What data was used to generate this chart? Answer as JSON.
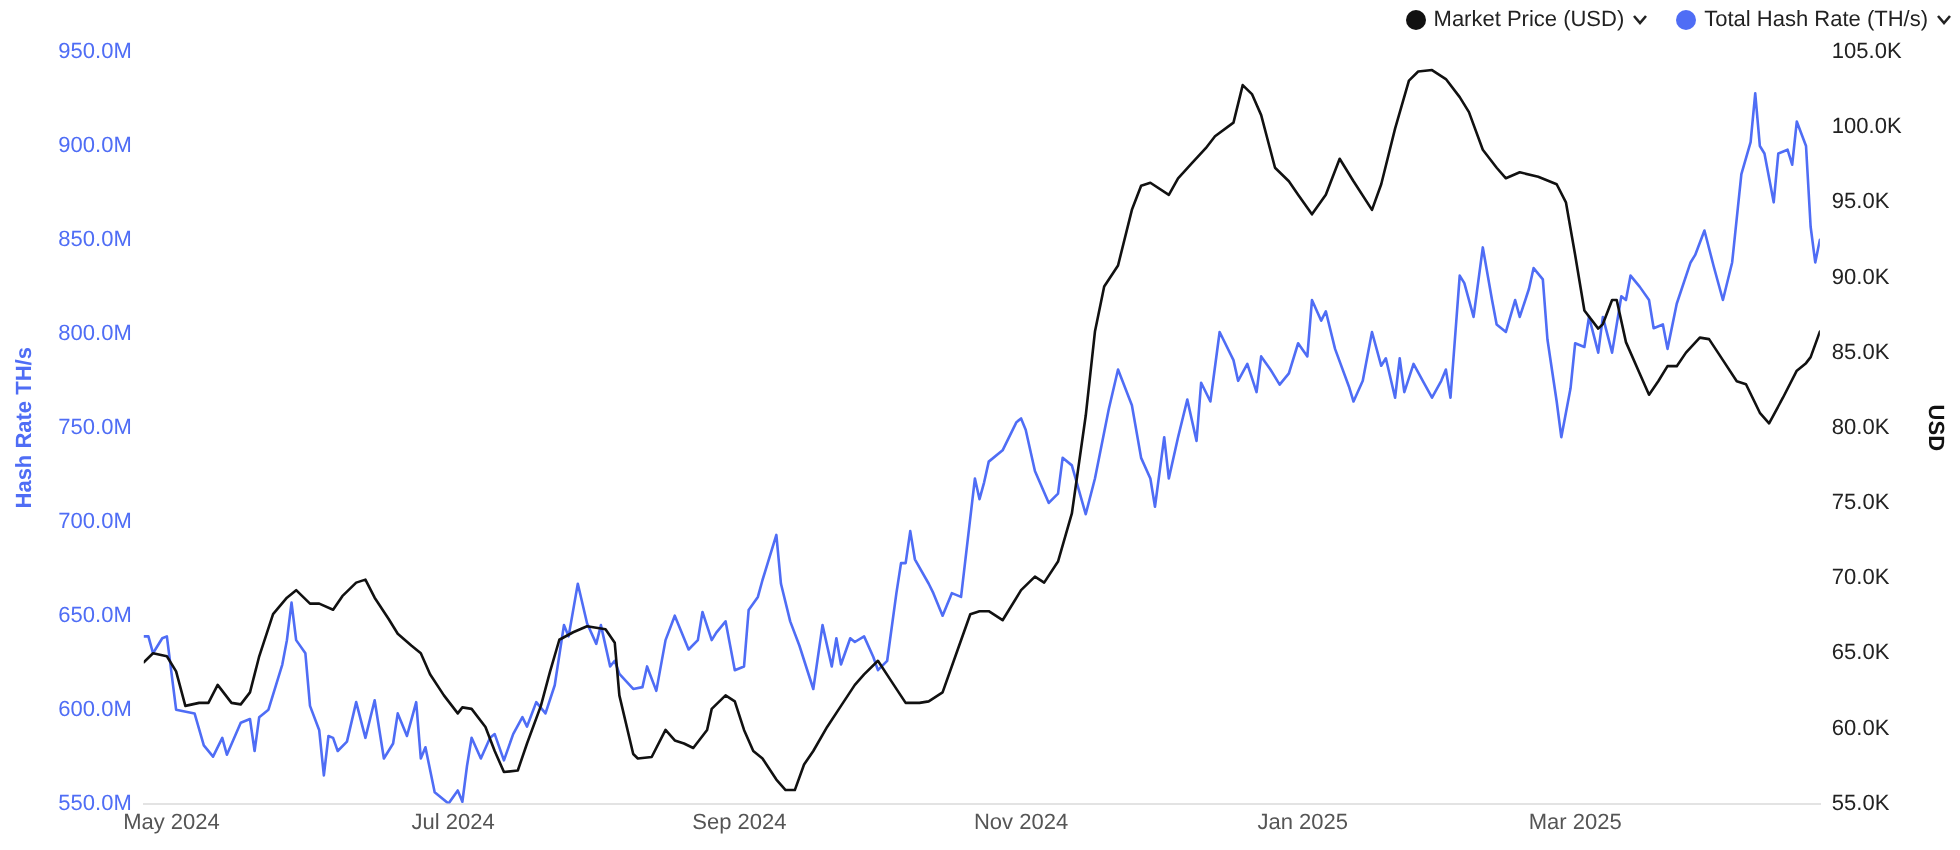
{
  "chart_data": {
    "type": "line",
    "xlim": [
      "2024-04-25",
      "2025-04-23"
    ],
    "xticks": [
      {
        "value": "2024-05-01",
        "label": "May 2024"
      },
      {
        "value": "2024-07-01",
        "label": "Jul 2024"
      },
      {
        "value": "2024-09-01",
        "label": "Sep 2024"
      },
      {
        "value": "2024-11-01",
        "label": "Nov 2024"
      },
      {
        "value": "2025-01-01",
        "label": "Jan 2025"
      },
      {
        "value": "2025-03-01",
        "label": "Mar 2025"
      }
    ],
    "ylabel": "Hash Rate TH/s",
    "ylim": [
      550,
      950
    ],
    "yticks": [
      {
        "value": 550,
        "label": "550.0M"
      },
      {
        "value": 600,
        "label": "600.0M"
      },
      {
        "value": 650,
        "label": "650.0M"
      },
      {
        "value": 700,
        "label": "700.0M"
      },
      {
        "value": 750,
        "label": "750.0M"
      },
      {
        "value": 800,
        "label": "800.0M"
      },
      {
        "value": 850,
        "label": "850.0M"
      },
      {
        "value": 900,
        "label": "900.0M"
      },
      {
        "value": 950,
        "label": "950.0M"
      }
    ],
    "y2label": "USD",
    "y2lim": [
      55,
      105
    ],
    "y2ticks": [
      {
        "value": 55,
        "label": "55.0K"
      },
      {
        "value": 60,
        "label": "60.0K"
      },
      {
        "value": 65,
        "label": "65.0K"
      },
      {
        "value": 70,
        "label": "70.0K"
      },
      {
        "value": 75,
        "label": "75.0K"
      },
      {
        "value": 80,
        "label": "80.0K"
      },
      {
        "value": 85,
        "label": "85.0K"
      },
      {
        "value": 90,
        "label": "90.0K"
      },
      {
        "value": 95,
        "label": "95.0K"
      },
      {
        "value": 100,
        "label": "100.0K"
      },
      {
        "value": 105,
        "label": "105.0K"
      }
    ],
    "grid": false,
    "legend": "top right",
    "marker": "none",
    "line_style": "solid",
    "series": [
      {
        "name": "Market Price (USD)",
        "color": "#111111",
        "axis": "y2",
        "x": [
          "2024-04-25",
          "2024-04-27",
          "2024-04-30",
          "2024-05-02",
          "2024-05-04",
          "2024-05-07",
          "2024-05-09",
          "2024-05-11",
          "2024-05-14",
          "2024-05-16",
          "2024-05-18",
          "2024-05-20",
          "2024-05-23",
          "2024-05-26",
          "2024-05-28",
          "2024-05-31",
          "2024-06-02",
          "2024-06-05",
          "2024-06-07",
          "2024-06-10",
          "2024-06-12",
          "2024-06-14",
          "2024-06-17",
          "2024-06-19",
          "2024-06-22",
          "2024-06-24",
          "2024-06-26",
          "2024-06-29",
          "2024-07-02",
          "2024-07-03",
          "2024-07-05",
          "2024-07-08",
          "2024-07-10",
          "2024-07-12",
          "2024-07-15",
          "2024-07-17",
          "2024-07-20",
          "2024-07-22",
          "2024-07-24",
          "2024-07-27",
          "2024-07-30",
          "2024-08-03",
          "2024-08-05",
          "2024-08-06",
          "2024-08-09",
          "2024-08-10",
          "2024-08-13",
          "2024-08-16",
          "2024-08-18",
          "2024-08-20",
          "2024-08-22",
          "2024-08-25",
          "2024-08-26",
          "2024-08-29",
          "2024-08-31",
          "2024-09-02",
          "2024-09-04",
          "2024-09-06",
          "2024-09-09",
          "2024-09-11",
          "2024-09-13",
          "2024-09-15",
          "2024-09-17",
          "2024-09-20",
          "2024-09-23",
          "2024-09-26",
          "2024-09-28",
          "2024-10-01",
          "2024-10-04",
          "2024-10-07",
          "2024-10-10",
          "2024-10-12",
          "2024-10-15",
          "2024-10-18",
          "2024-10-21",
          "2024-10-23",
          "2024-10-25",
          "2024-10-28",
          "2024-11-01",
          "2024-11-04",
          "2024-11-06",
          "2024-11-09",
          "2024-11-12",
          "2024-11-15",
          "2024-11-17",
          "2024-11-19",
          "2024-11-22",
          "2024-11-25",
          "2024-11-27",
          "2024-11-29",
          "2024-12-03",
          "2024-12-05",
          "2024-12-08",
          "2024-12-11",
          "2024-12-13",
          "2024-12-17",
          "2024-12-19",
          "2024-12-21",
          "2024-12-23",
          "2024-12-26",
          "2024-12-29",
          "2024-12-31",
          "2025-01-03",
          "2025-01-06",
          "2025-01-09",
          "2025-01-12",
          "2025-01-16",
          "2025-01-18",
          "2025-01-21",
          "2025-01-24",
          "2025-01-26",
          "2025-01-29",
          "2025-02-01",
          "2025-02-04",
          "2025-02-06",
          "2025-02-09",
          "2025-02-12",
          "2025-02-14",
          "2025-02-17",
          "2025-02-21",
          "2025-02-25",
          "2025-02-27",
          "2025-03-01",
          "2025-03-03",
          "2025-03-06",
          "2025-03-07",
          "2025-03-09",
          "2025-03-10",
          "2025-03-12",
          "2025-03-15",
          "2025-03-17",
          "2025-03-19",
          "2025-03-21",
          "2025-03-23",
          "2025-03-25",
          "2025-03-28",
          "2025-03-30",
          "2025-04-02",
          "2025-04-05",
          "2025-04-07",
          "2025-04-10",
          "2025-04-12",
          "2025-04-15",
          "2025-04-18",
          "2025-04-20",
          "2025-04-21",
          "2025-04-23"
        ],
        "values": [
          64.4,
          65.0,
          64.8,
          63.8,
          61.5,
          61.7,
          61.7,
          62.9,
          61.7,
          61.6,
          62.4,
          64.8,
          67.6,
          68.7,
          69.2,
          68.3,
          68.3,
          67.9,
          68.8,
          69.7,
          69.9,
          68.7,
          67.3,
          66.3,
          65.5,
          65.0,
          63.6,
          62.2,
          61.0,
          61.4,
          61.3,
          60.1,
          58.5,
          57.1,
          57.2,
          59.0,
          61.5,
          63.8,
          65.9,
          66.4,
          66.8,
          66.6,
          65.7,
          62.2,
          58.3,
          58.0,
          58.1,
          59.9,
          59.2,
          59.0,
          58.7,
          59.9,
          61.3,
          62.2,
          61.8,
          59.9,
          58.5,
          58.0,
          56.6,
          55.9,
          55.9,
          57.6,
          58.5,
          60.1,
          61.5,
          62.9,
          63.6,
          64.5,
          63.1,
          61.7,
          61.7,
          61.8,
          62.4,
          65.0,
          67.6,
          67.8,
          67.8,
          67.2,
          69.2,
          70.1,
          69.7,
          71.1,
          74.3,
          80.8,
          86.4,
          89.4,
          90.8,
          94.5,
          96.1,
          96.3,
          95.5,
          96.6,
          97.6,
          98.6,
          99.4,
          100.3,
          102.8,
          102.2,
          100.8,
          97.3,
          96.4,
          95.5,
          94.2,
          95.5,
          97.9,
          96.4,
          94.5,
          96.2,
          99.9,
          103.1,
          103.7,
          103.8,
          103.2,
          102.0,
          101.0,
          98.5,
          97.3,
          96.6,
          97.0,
          96.7,
          96.2,
          95.0,
          91.5,
          87.8,
          86.6,
          86.9,
          88.5,
          88.5,
          85.7,
          83.6,
          82.2,
          83.1,
          84.1,
          84.1,
          85.0,
          86.0,
          85.9,
          84.5,
          83.1,
          82.9,
          81.0,
          80.3,
          82.0,
          83.8,
          84.3,
          84.7,
          86.4
        ]
      },
      {
        "name": "Total Hash Rate (TH/s)",
        "color": "#4f6df5",
        "axis": "y",
        "x": [
          "2024-04-25",
          "2024-04-26",
          "2024-04-27",
          "2024-04-29",
          "2024-04-30",
          "2024-05-02",
          "2024-05-06",
          "2024-05-08",
          "2024-05-10",
          "2024-05-12",
          "2024-05-13",
          "2024-05-16",
          "2024-05-18",
          "2024-05-19",
          "2024-05-20",
          "2024-05-22",
          "2024-05-25",
          "2024-05-26",
          "2024-05-27",
          "2024-05-28",
          "2024-05-30",
          "2024-05-31",
          "2024-06-02",
          "2024-06-03",
          "2024-06-04",
          "2024-06-05",
          "2024-06-06",
          "2024-06-08",
          "2024-06-10",
          "2024-06-12",
          "2024-06-14",
          "2024-06-16",
          "2024-06-18",
          "2024-06-19",
          "2024-06-21",
          "2024-06-23",
          "2024-06-24",
          "2024-06-25",
          "2024-06-27",
          "2024-06-30",
          "2024-07-02",
          "2024-07-03",
          "2024-07-04",
          "2024-07-05",
          "2024-07-07",
          "2024-07-09",
          "2024-07-10",
          "2024-07-12",
          "2024-07-14",
          "2024-07-16",
          "2024-07-17",
          "2024-07-19",
          "2024-07-21",
          "2024-07-23",
          "2024-07-25",
          "2024-07-26",
          "2024-07-28",
          "2024-07-30",
          "2024-08-01",
          "2024-08-02",
          "2024-08-04",
          "2024-08-05",
          "2024-08-06",
          "2024-08-09",
          "2024-08-11",
          "2024-08-12",
          "2024-08-14",
          "2024-08-16",
          "2024-08-18",
          "2024-08-21",
          "2024-08-23",
          "2024-08-24",
          "2024-08-26",
          "2024-08-27",
          "2024-08-29",
          "2024-08-31",
          "2024-09-02",
          "2024-09-03",
          "2024-09-05",
          "2024-09-06",
          "2024-09-09",
          "2024-09-10",
          "2024-09-12",
          "2024-09-14",
          "2024-09-17",
          "2024-09-19",
          "2024-09-21",
          "2024-09-22",
          "2024-09-23",
          "2024-09-25",
          "2024-09-26",
          "2024-09-28",
          "2024-09-30",
          "2024-10-01",
          "2024-10-03",
          "2024-10-05",
          "2024-10-06",
          "2024-10-07",
          "2024-10-08",
          "2024-10-09",
          "2024-10-12",
          "2024-10-13",
          "2024-10-15",
          "2024-10-17",
          "2024-10-19",
          "2024-10-22",
          "2024-10-23",
          "2024-10-24",
          "2024-10-25",
          "2024-10-28",
          "2024-10-31",
          "2024-11-01",
          "2024-11-02",
          "2024-11-04",
          "2024-11-07",
          "2024-11-09",
          "2024-11-10",
          "2024-11-12",
          "2024-11-15",
          "2024-11-17",
          "2024-11-20",
          "2024-11-22",
          "2024-11-25",
          "2024-11-27",
          "2024-11-29",
          "2024-11-30",
          "2024-12-02",
          "2024-12-03",
          "2024-12-05",
          "2024-12-07",
          "2024-12-09",
          "2024-12-10",
          "2024-12-12",
          "2024-12-14",
          "2024-12-17",
          "2024-12-18",
          "2024-12-20",
          "2024-12-22",
          "2024-12-23",
          "2024-12-25",
          "2024-12-27",
          "2024-12-29",
          "2024-12-31",
          "2025-01-02",
          "2025-01-03",
          "2025-01-05",
          "2025-01-06",
          "2025-01-08",
          "2025-01-11",
          "2025-01-12",
          "2025-01-14",
          "2025-01-16",
          "2025-01-18",
          "2025-01-19",
          "2025-01-21",
          "2025-01-22",
          "2025-01-23",
          "2025-01-25",
          "2025-01-27",
          "2025-01-29",
          "2025-01-31",
          "2025-02-01",
          "2025-02-02",
          "2025-02-04",
          "2025-02-05",
          "2025-02-07",
          "2025-02-09",
          "2025-02-11",
          "2025-02-12",
          "2025-02-14",
          "2025-02-16",
          "2025-02-17",
          "2025-02-19",
          "2025-02-20",
          "2025-02-22",
          "2025-02-23",
          "2025-02-25",
          "2025-02-26",
          "2025-02-28",
          "2025-03-01",
          "2025-03-03",
          "2025-03-04",
          "2025-03-06",
          "2025-03-07",
          "2025-03-09",
          "2025-03-11",
          "2025-03-12",
          "2025-03-13",
          "2025-03-15",
          "2025-03-17",
          "2025-03-18",
          "2025-03-20",
          "2025-03-21",
          "2025-03-23",
          "2025-03-26",
          "2025-03-27",
          "2025-03-29",
          "2025-03-31",
          "2025-04-02",
          "2025-04-04",
          "2025-04-06",
          "2025-04-08",
          "2025-04-09",
          "2025-04-10",
          "2025-04-11",
          "2025-04-13",
          "2025-04-14",
          "2025-04-16",
          "2025-04-17",
          "2025-04-18",
          "2025-04-20",
          "2025-04-21",
          "2025-04-22",
          "2025-04-23"
        ],
        "values": [
          639,
          639,
          630,
          638,
          639,
          600,
          598,
          581,
          575,
          585,
          576,
          593,
          595,
          578,
          596,
          600,
          624,
          637,
          657,
          637,
          630,
          602,
          589,
          565,
          586,
          585,
          578,
          583,
          604,
          585,
          605,
          574,
          582,
          598,
          586,
          604,
          574,
          580,
          556,
          550,
          557,
          551,
          570,
          585,
          574,
          585,
          587,
          573,
          587,
          596,
          591,
          604,
          598,
          613,
          645,
          639,
          667,
          646,
          635,
          645,
          623,
          626,
          619,
          611,
          612,
          623,
          610,
          637,
          650,
          632,
          637,
          652,
          637,
          641,
          647,
          621,
          623,
          653,
          660,
          669,
          693,
          667,
          647,
          634,
          611,
          645,
          623,
          638,
          624,
          638,
          636,
          639,
          628,
          621,
          626,
          662,
          678,
          678,
          695,
          680,
          667,
          662,
          650,
          662,
          660,
          723,
          712,
          721,
          732,
          738,
          753,
          755,
          749,
          727,
          710,
          715,
          734,
          730,
          704,
          723,
          760,
          781,
          762,
          734,
          723,
          708,
          745,
          723,
          745,
          765,
          743,
          774,
          764,
          801,
          786,
          775,
          784,
          769,
          788,
          781,
          773,
          779,
          795,
          788,
          818,
          807,
          812,
          792,
          772,
          764,
          775,
          801,
          783,
          787,
          766,
          787,
          769,
          784,
          775,
          766,
          775,
          781,
          766,
          831,
          827,
          809,
          846,
          818,
          805,
          801,
          818,
          809,
          824,
          835,
          829,
          797,
          764,
          745,
          771,
          795,
          793,
          809,
          790,
          809,
          790,
          820,
          818,
          831,
          825,
          818,
          803,
          805,
          792,
          816,
          838,
          842,
          855,
          836,
          818,
          838,
          885,
          902,
          928,
          900,
          896,
          870,
          896,
          898,
          890,
          913,
          900,
          857,
          838,
          850
        ]
      }
    ]
  }
}
